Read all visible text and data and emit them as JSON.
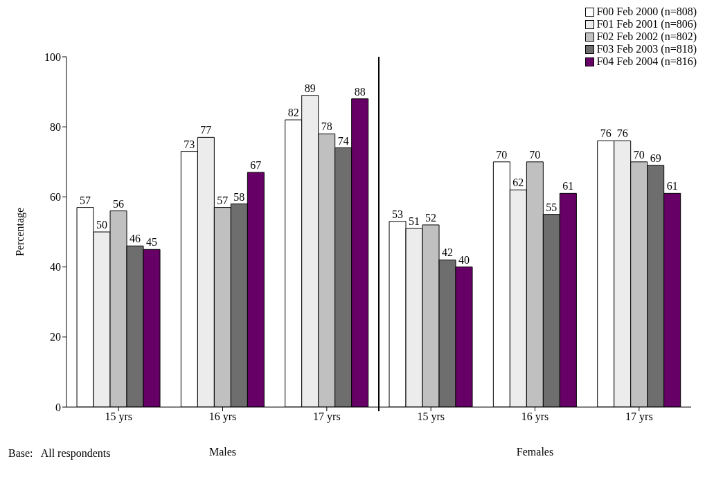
{
  "chart_data": {
    "type": "bar",
    "ylabel": "Percentage",
    "categories": [
      "15 yrs",
      "16 yrs",
      "17 yrs",
      "15 yrs",
      "16 yrs",
      "17 yrs"
    ],
    "series": [
      {
        "name": "F00 Feb 2000 (n=808)",
        "color": "#ffffff",
        "values": [
          57,
          73,
          82,
          53,
          70,
          76
        ]
      },
      {
        "name": "F01 Feb 2001 (n=806)",
        "color": "#ececec",
        "values": [
          50,
          77,
          89,
          51,
          62,
          76
        ]
      },
      {
        "name": "F02 Feb 2002 (n=802)",
        "color": "#c0c0c0",
        "values": [
          56,
          57,
          78,
          52,
          70,
          70
        ]
      },
      {
        "name": "F03 Feb 2003 (n=818)",
        "color": "#6e6e6e",
        "values": [
          46,
          58,
          74,
          42,
          55,
          69
        ]
      },
      {
        "name": "F04 Feb 2004 (n=816)",
        "color": "#660066",
        "values": [
          45,
          67,
          88,
          40,
          61,
          61
        ]
      }
    ],
    "ylim": [
      0,
      100
    ],
    "yticks": [
      0,
      20,
      40,
      60,
      80,
      100
    ],
    "legend": "top right",
    "data_labels": true,
    "annotations": [
      "Males",
      "Females",
      "Base:   All respondents"
    ]
  }
}
